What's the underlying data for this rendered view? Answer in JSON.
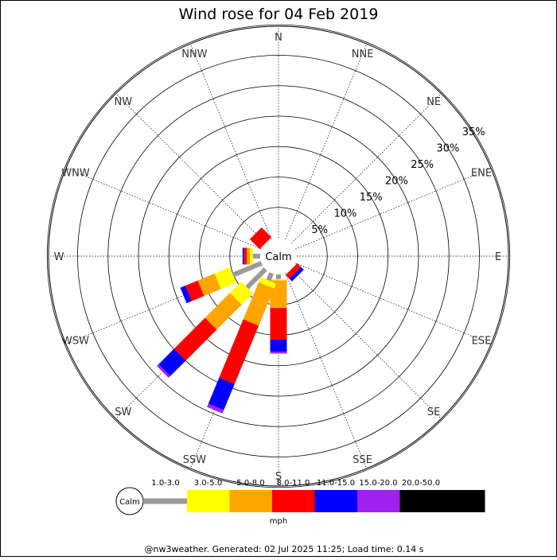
{
  "chart_data": {
    "type": "wind-rose",
    "title": "Wind rose for 04 Feb 2019",
    "calm_label": "Calm",
    "directions": [
      "N",
      "NNE",
      "NE",
      "ENE",
      "E",
      "ESE",
      "SE",
      "SSE",
      "S",
      "SSW",
      "SW",
      "WSW",
      "W",
      "WNW",
      "NW",
      "NNW"
    ],
    "radial_ticks": [
      "5%",
      "10%",
      "15%",
      "20%",
      "25%",
      "30%",
      "35%"
    ],
    "radial_max": 35,
    "grid": true,
    "unit": "mph",
    "speed_bins": [
      {
        "label": "",
        "color": "#999999"
      },
      {
        "label": "1.0-3.0",
        "color": "#ffff00"
      },
      {
        "label": "3.0-5.0",
        "color": "#ffa500"
      },
      {
        "label": "5.0-8.0",
        "color": "#ff0000"
      },
      {
        "label": "8.0-11.0",
        "color": "#0000ff"
      },
      {
        "label": "11.0-15.0",
        "color": "#a020f0"
      },
      {
        "label": "15.0-20.0",
        "color": "#000000"
      },
      {
        "label": "20.0-50.0",
        "color": "#000000"
      }
    ],
    "series": [
      {
        "direction": "NNW",
        "segments": [
          0,
          0,
          0,
          0,
          0,
          0,
          0,
          0
        ]
      },
      {
        "direction": "NW",
        "segments": [
          0,
          0,
          0,
          2.3,
          0,
          0,
          0,
          0
        ]
      },
      {
        "direction": "SE",
        "segments": [
          0,
          0,
          0,
          0.9,
          0.6,
          0,
          0,
          0
        ]
      },
      {
        "direction": "S",
        "segments": [
          0.8,
          0.2,
          4.5,
          5.2,
          2.0,
          0.3,
          0,
          0
        ]
      },
      {
        "direction": "SSW",
        "segments": [
          1.3,
          0.9,
          6.6,
          10.4,
          4.6,
          0.6,
          0,
          0
        ]
      },
      {
        "direction": "SW",
        "segments": [
          4.3,
          2.6,
          5.8,
          7.2,
          3.6,
          0.4,
          0,
          0
        ]
      },
      {
        "direction": "WSW",
        "segments": [
          5.1,
          2.7,
          3.0,
          2.2,
          0.9,
          0,
          0,
          0
        ]
      },
      {
        "direction": "W",
        "segments": [
          1.2,
          0.5,
          0.5,
          0.5,
          0.2,
          0,
          0,
          0
        ]
      }
    ]
  },
  "footer": "@nw3weather.  Generated: 02 Jul 2025 11:25; Load time: 0.14 s"
}
